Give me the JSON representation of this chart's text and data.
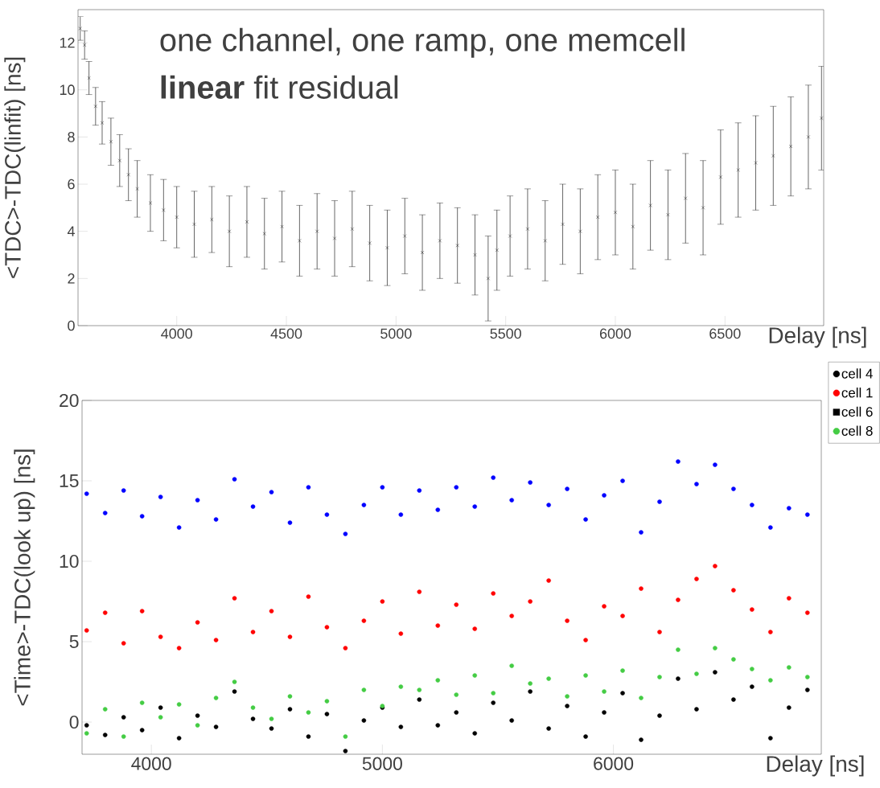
{
  "chart_data": [
    {
      "type": "scatter",
      "xlabel": "Delay [ns]",
      "ylabel": "<TDC>-TDC(linfit) [ns]",
      "annotations": [
        "one channel, one ramp, one memcell",
        "**linear** fit residual"
      ],
      "marker": "cross",
      "color": "#000000",
      "x": [
        3560,
        3580,
        3600,
        3630,
        3660,
        3700,
        3740,
        3780,
        3820,
        3880,
        3940,
        4000,
        4080,
        4160,
        4240,
        4320,
        4400,
        4480,
        4560,
        4640,
        4720,
        4800,
        4880,
        4960,
        5040,
        5120,
        5200,
        5280,
        5360,
        5420,
        5460,
        5520,
        5600,
        5680,
        5760,
        5840,
        5920,
        6000,
        6080,
        6160,
        6240,
        6320,
        6400,
        6480,
        6560,
        6640,
        6720,
        6800,
        6880,
        6940
      ],
      "values": [
        12.6,
        11.9,
        10.5,
        9.3,
        8.6,
        7.8,
        7.0,
        6.4,
        5.8,
        5.2,
        4.9,
        4.6,
        4.3,
        4.5,
        4.0,
        4.4,
        3.9,
        4.2,
        3.6,
        4.0,
        3.7,
        4.1,
        3.5,
        3.3,
        3.8,
        3.1,
        3.6,
        3.4,
        3.0,
        2.0,
        3.2,
        3.8,
        4.1,
        3.6,
        4.3,
        4.0,
        4.6,
        4.8,
        4.2,
        5.1,
        4.7,
        5.4,
        5.0,
        6.3,
        6.6,
        6.9,
        7.2,
        7.6,
        8.0,
        8.8
      ],
      "errors": [
        0.5,
        0.6,
        0.7,
        0.8,
        0.9,
        1.0,
        1.1,
        1.1,
        1.2,
        1.2,
        1.3,
        1.3,
        1.4,
        1.4,
        1.5,
        1.5,
        1.5,
        1.5,
        1.5,
        1.6,
        1.6,
        1.6,
        1.6,
        1.6,
        1.6,
        1.6,
        1.6,
        1.6,
        1.7,
        1.8,
        1.7,
        1.7,
        1.7,
        1.7,
        1.7,
        1.8,
        1.8,
        1.8,
        1.8,
        1.9,
        1.9,
        1.9,
        2.0,
        2.0,
        2.0,
        2.0,
        2.1,
        2.1,
        2.2,
        2.2
      ],
      "xlim": [
        3550,
        6950
      ],
      "ylim": [
        0,
        13.4
      ],
      "xticks": [
        4000,
        4500,
        5000,
        5500,
        6000,
        6500
      ],
      "yticks": [
        0,
        2,
        4,
        6,
        8,
        10,
        12
      ]
    },
    {
      "type": "scatter",
      "xlabel": "Delay [ns]",
      "ylabel": "<Time>-TDC(look up) [ns]",
      "marker": "circle",
      "legend": "top right",
      "x": [
        3720,
        3800,
        3880,
        3960,
        4040,
        4120,
        4200,
        4280,
        4360,
        4440,
        4520,
        4600,
        4680,
        4760,
        4840,
        4920,
        5000,
        5080,
        5160,
        5240,
        5320,
        5400,
        5480,
        5560,
        5640,
        5720,
        5800,
        5880,
        5960,
        6040,
        6120,
        6200,
        6280,
        6360,
        6440,
        6520,
        6600,
        6680,
        6760,
        6840
      ],
      "series": [
        {
          "color": "#0000ff",
          "values": [
            14.2,
            13.0,
            14.4,
            12.8,
            14.0,
            12.1,
            13.8,
            12.6,
            15.1,
            13.4,
            14.3,
            12.4,
            14.6,
            12.9,
            11.7,
            13.5,
            14.6,
            12.9,
            14.4,
            13.2,
            14.6,
            13.4,
            15.2,
            13.8,
            14.9,
            13.5,
            14.5,
            12.6,
            14.1,
            15.0,
            11.8,
            13.7,
            16.2,
            14.8,
            16.0,
            14.5,
            13.5,
            12.1,
            13.3,
            12.9
          ]
        },
        {
          "name": "cell 4",
          "color": "#000000",
          "values": [
            -0.2,
            -0.8,
            0.3,
            -0.5,
            0.9,
            -1.0,
            0.4,
            -0.3,
            1.9,
            0.2,
            -0.4,
            0.8,
            -0.9,
            0.5,
            -1.8,
            0.1,
            0.9,
            -0.3,
            1.4,
            -0.2,
            0.6,
            -0.7,
            1.2,
            0.1,
            1.9,
            -0.4,
            1.0,
            -0.9,
            0.6,
            1.8,
            -1.1,
            0.4,
            2.7,
            0.8,
            3.1,
            1.4,
            2.2,
            -1.0,
            0.9,
            2.0
          ]
        },
        {
          "name": "cell 1",
          "color": "#ff0000",
          "values": [
            5.7,
            6.8,
            4.9,
            6.9,
            5.3,
            4.6,
            6.2,
            5.1,
            7.7,
            5.6,
            6.9,
            5.3,
            7.8,
            5.9,
            4.6,
            6.3,
            7.5,
            5.5,
            8.1,
            6.0,
            7.3,
            5.8,
            8.0,
            6.6,
            7.5,
            8.8,
            6.3,
            5.1,
            7.2,
            6.6,
            8.3,
            5.6,
            7.6,
            8.9,
            9.7,
            8.2,
            7.0,
            5.6,
            7.7,
            6.8
          ]
        },
        {
          "name": "cell 6",
          "color": "#000000",
          "marker": "square",
          "values": [
            null,
            null,
            null,
            null,
            null,
            null,
            null,
            null,
            null,
            null,
            null,
            null,
            null,
            null,
            null,
            null,
            null,
            null,
            null,
            null,
            null,
            null,
            null,
            null,
            null,
            null,
            null,
            null,
            null,
            null,
            null,
            null,
            null,
            null,
            null,
            null,
            null,
            null,
            null,
            null
          ]
        },
        {
          "name": "cell 8",
          "color": "#44cc44",
          "values": [
            -0.7,
            0.8,
            -0.9,
            1.2,
            0.3,
            1.1,
            -0.2,
            1.5,
            2.5,
            0.9,
            0.2,
            1.6,
            0.6,
            1.3,
            -0.9,
            2.0,
            1.0,
            2.2,
            2.0,
            2.6,
            1.7,
            2.9,
            1.8,
            3.5,
            2.4,
            2.7,
            1.6,
            2.9,
            1.9,
            3.2,
            1.5,
            2.8,
            4.5,
            3.0,
            4.6,
            3.9,
            3.3,
            2.6,
            3.4,
            2.8
          ]
        }
      ],
      "xlim": [
        3700,
        6900
      ],
      "ylim": [
        -2,
        20
      ],
      "xticks": [
        4000,
        5000,
        6000
      ],
      "yticks": [
        0,
        5,
        10,
        15,
        20
      ]
    }
  ]
}
